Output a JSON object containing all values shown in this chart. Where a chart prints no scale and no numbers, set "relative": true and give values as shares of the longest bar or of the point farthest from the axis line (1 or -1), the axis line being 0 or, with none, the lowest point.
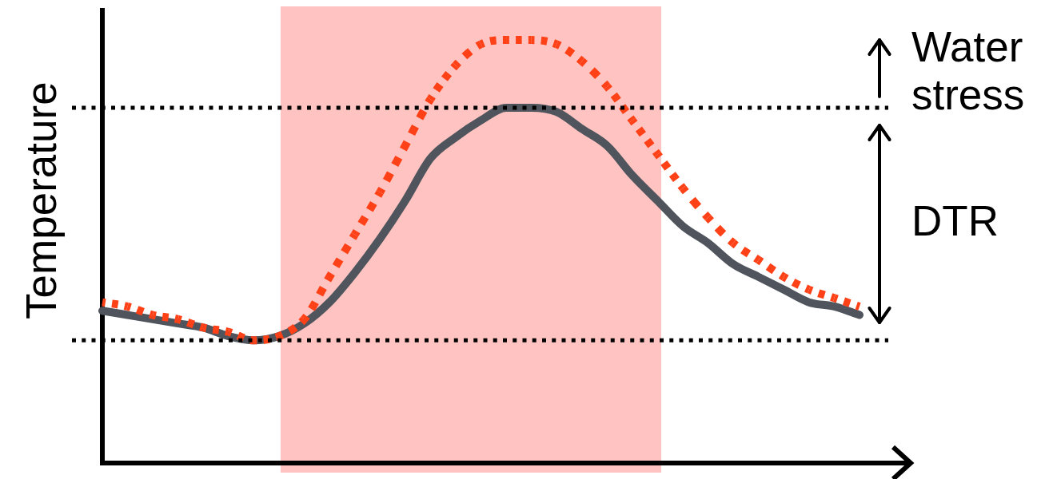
{
  "chart_data": {
    "type": "line",
    "ylabel": "Temperature",
    "relative": true,
    "categories": [
      null,
      null,
      null,
      null,
      null,
      null,
      null,
      null,
      null,
      null,
      null,
      null,
      null,
      null,
      null,
      null,
      null,
      null,
      null,
      null,
      null,
      null,
      null,
      null,
      null,
      null,
      null,
      null,
      null,
      null,
      null
    ],
    "series": [
      {
        "color": "#50555d",
        "line_style": "solid",
        "values": [
          0.36,
          0.35,
          0.34,
          0.33,
          0.32,
          0.3,
          0.29,
          0.3,
          0.33,
          0.38,
          0.45,
          0.53,
          0.62,
          0.72,
          0.77,
          0.81,
          0.84,
          0.84,
          0.83,
          0.79,
          0.75,
          0.68,
          0.62,
          0.56,
          0.52,
          0.47,
          0.44,
          0.41,
          0.38,
          0.37,
          0.35
        ]
      },
      {
        "color": "#ff4118",
        "line_style": "dotted",
        "values": [
          0.38,
          0.37,
          0.35,
          0.34,
          0.32,
          0.31,
          0.29,
          0.3,
          0.34,
          0.44,
          0.54,
          0.64,
          0.75,
          0.86,
          0.94,
          0.99,
          1,
          1,
          0.99,
          0.95,
          0.89,
          0.81,
          0.73,
          0.65,
          0.58,
          0.52,
          0.48,
          0.44,
          0.41,
          0.39,
          0.37
        ]
      }
    ],
    "ref_lines": [
      {
        "axis": "y",
        "value": 0.29,
        "color": "#000000",
        "line_style": "dotted"
      },
      {
        "axis": "y",
        "value": 0.84,
        "color": "#000000",
        "line_style": "dotted"
      }
    ],
    "annotations": [
      "Water stress",
      "DTR"
    ],
    "legend": false,
    "grid": false,
    "marker": "none",
    "tick_labels": false
  }
}
